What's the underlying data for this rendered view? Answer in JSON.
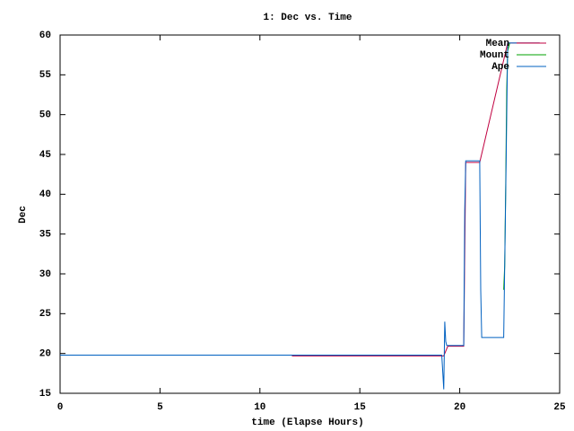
{
  "chart_data": {
    "type": "line",
    "title": "1: Dec vs. Time",
    "x_label": "time (Elapse Hours)",
    "y_label": "Dec",
    "xlim": [
      0,
      25
    ],
    "xticks": [
      0,
      5,
      10,
      15,
      20,
      25
    ],
    "ylim": [
      15,
      60
    ],
    "yticks": [
      15,
      20,
      25,
      30,
      35,
      40,
      45,
      50,
      55,
      60
    ],
    "grid": false,
    "legend": "top-right",
    "series": [
      {
        "name": "Mean",
        "color": "#c00040",
        "x": [
          11.6,
          19.2,
          19.4,
          20.2,
          20.3,
          21.0,
          22.4,
          24
        ],
        "values": [
          19.7,
          19.7,
          20.9,
          20.9,
          44,
          44,
          59,
          59
        ]
      },
      {
        "name": "Mount",
        "color": "#00a000",
        "x": [
          22.2,
          22.25,
          22.3,
          22.35,
          22.4,
          22.5
        ],
        "values": [
          28,
          31,
          41,
          53,
          58,
          59
        ]
      },
      {
        "name": "Ape",
        "color": "#0060c0",
        "x": [
          0,
          19.1,
          19.2,
          19.25,
          19.3,
          19.35,
          19.4,
          20.2,
          20.25,
          20.3,
          21.0,
          21.05,
          21.1,
          22.2,
          22.3,
          22.4,
          24
        ],
        "values": [
          19.8,
          19.8,
          15.5,
          24,
          21.5,
          21,
          21,
          21,
          38,
          44.2,
          44.2,
          28,
          22,
          22,
          40,
          59,
          59
        ]
      }
    ]
  }
}
